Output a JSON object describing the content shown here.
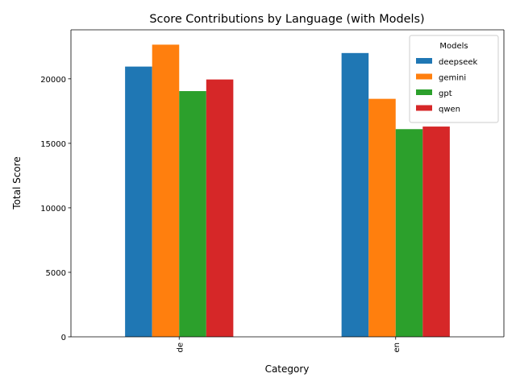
{
  "chart_data": {
    "type": "bar",
    "title": "Score Contributions by Language (with Models)",
    "xlabel": "Category",
    "ylabel": "Total Score",
    "categories": [
      "de",
      "en"
    ],
    "ylim": [
      0,
      23800
    ],
    "yticks": [
      0,
      5000,
      10000,
      15000,
      20000
    ],
    "grid": false,
    "legend": {
      "title": "Models",
      "placement": "top-right"
    },
    "series": [
      {
        "name": "deepseek",
        "color": "#1f77b4",
        "values": [
          20950,
          22000
        ]
      },
      {
        "name": "gemini",
        "color": "#ff7f0e",
        "values": [
          22650,
          18450
        ]
      },
      {
        "name": "gpt",
        "color": "#2ca02c",
        "values": [
          19050,
          16100
        ]
      },
      {
        "name": "qwen",
        "color": "#d62728",
        "values": [
          19950,
          16300
        ]
      }
    ]
  }
}
